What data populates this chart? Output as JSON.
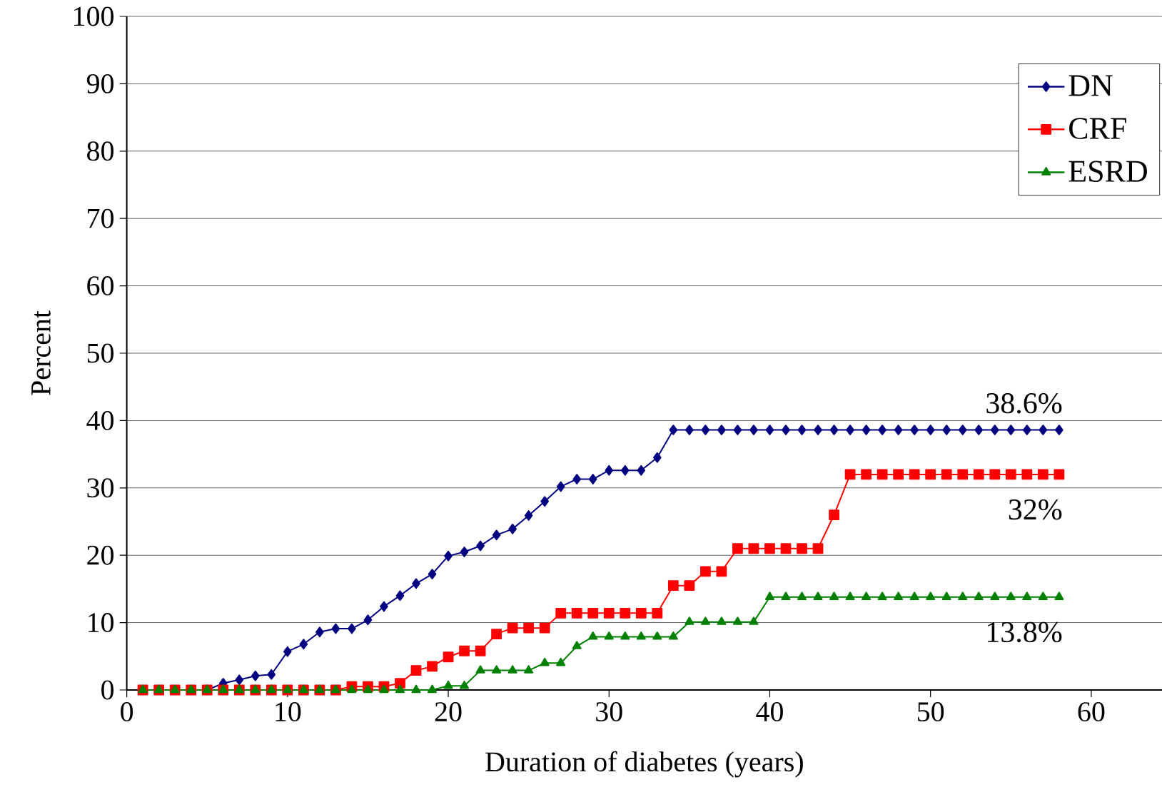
{
  "chart_data": {
    "type": "line",
    "xlabel": "Duration of diabetes (years)",
    "ylabel": "Percent",
    "x": [
      1,
      2,
      3,
      4,
      5,
      6,
      7,
      8,
      9,
      10,
      11,
      12,
      13,
      14,
      15,
      16,
      17,
      18,
      19,
      20,
      21,
      22,
      23,
      24,
      25,
      26,
      27,
      28,
      29,
      30,
      31,
      32,
      33,
      34,
      35,
      36,
      37,
      38,
      39,
      40,
      41,
      42,
      43,
      44,
      45,
      46,
      47,
      48,
      49,
      50,
      51,
      52,
      53,
      54,
      55,
      56,
      57,
      58
    ],
    "series": [
      {
        "name": "DN",
        "color": "#000080",
        "marker": "diamond",
        "values": [
          null,
          null,
          null,
          null,
          0,
          1.0,
          1.5,
          2.1,
          2.3,
          5.7,
          6.8,
          8.6,
          9.1,
          9.1,
          10.4,
          12.4,
          14.0,
          15.8,
          17.2,
          19.9,
          20.5,
          21.4,
          23.0,
          23.9,
          25.9,
          28.0,
          30.2,
          31.3,
          31.3,
          32.6,
          32.6,
          32.6,
          34.5,
          38.6,
          38.6,
          38.6,
          38.6,
          38.6,
          38.6,
          38.6,
          38.6,
          38.6,
          38.6,
          38.6,
          38.6,
          38.6,
          38.6,
          38.6,
          38.6,
          38.6,
          38.6,
          38.6,
          38.6,
          38.6,
          38.6,
          38.6,
          38.6,
          38.6
        ]
      },
      {
        "name": "CRF",
        "color": "#ff0000",
        "marker": "square",
        "values": [
          0,
          0,
          0,
          0,
          0,
          0,
          0,
          0,
          0,
          0,
          0,
          0,
          0,
          0.5,
          0.5,
          0.5,
          1.0,
          2.9,
          3.5,
          4.9,
          5.8,
          5.8,
          8.3,
          9.2,
          9.2,
          9.2,
          11.4,
          11.4,
          11.4,
          11.4,
          11.4,
          11.4,
          11.4,
          15.5,
          15.5,
          17.6,
          17.6,
          21.0,
          21.0,
          21.0,
          21.0,
          21.0,
          21.0,
          26.0,
          32.0,
          32.0,
          32.0,
          32.0,
          32.0,
          32.0,
          32.0,
          32.0,
          32.0,
          32.0,
          32.0,
          32.0,
          32.0,
          32.0
        ]
      },
      {
        "name": "ESRD",
        "color": "#008000",
        "marker": "triangle",
        "values": [
          0,
          0,
          0,
          0,
          0,
          0,
          0,
          0,
          0,
          0,
          0,
          0,
          0,
          0,
          0,
          0,
          0,
          0,
          0,
          0.6,
          0.6,
          2.9,
          2.9,
          2.9,
          2.9,
          4.0,
          4.0,
          6.5,
          7.9,
          7.9,
          7.9,
          7.9,
          7.9,
          7.9,
          10.1,
          10.1,
          10.1,
          10.1,
          10.1,
          13.8,
          13.8,
          13.8,
          13.8,
          13.8,
          13.8,
          13.8,
          13.8,
          13.8,
          13.8,
          13.8,
          13.8,
          13.8,
          13.8,
          13.8,
          13.8,
          13.8,
          13.8,
          13.8
        ]
      }
    ],
    "annotations": [
      "38.6%",
      "32%",
      "13.8%"
    ],
    "xlim": [
      0,
      64.4
    ],
    "ylim": [
      0,
      100
    ],
    "xticks": [
      0,
      10,
      20,
      30,
      40,
      50,
      60
    ],
    "yticks": [
      0,
      10,
      20,
      30,
      40,
      50,
      60,
      70,
      80,
      90,
      100
    ],
    "grid": "y",
    "legend": "top right",
    "line_style": "solid"
  }
}
